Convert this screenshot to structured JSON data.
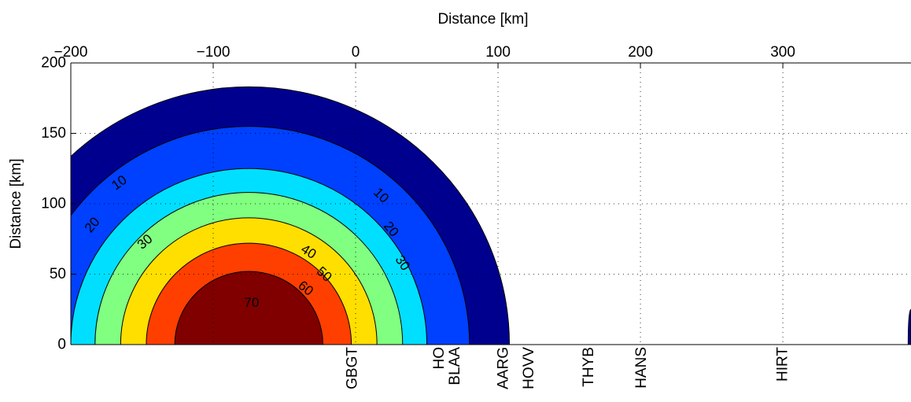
{
  "chart_data": {
    "type": "contour",
    "title": "",
    "xlabel": "Distance [km]",
    "ylabel": "Distance [km]",
    "xlim": [
      -200,
      390
    ],
    "ylim": [
      0,
      200
    ],
    "x_ticks": [
      -200,
      -100,
      0,
      100,
      200,
      300
    ],
    "x_tick_labels": [
      "−200",
      "−100",
      "0",
      "100",
      "200",
      "300"
    ],
    "y_ticks": [
      0,
      50,
      100,
      150,
      200
    ],
    "y_tick_labels": [
      "0",
      "50",
      "100",
      "150",
      "200"
    ],
    "grid": true,
    "source_center": [
      -75,
      0
    ],
    "levels": [
      {
        "value": 10,
        "radius_km": 183,
        "color": "#00008f"
      },
      {
        "value": 20,
        "radius_km": 155,
        "color": "#0040ff"
      },
      {
        "value": 30,
        "radius_km": 125,
        "color": "#00dfff"
      },
      {
        "value": 40,
        "radius_km": 108,
        "color": "#80ff80"
      },
      {
        "value": 50,
        "radius_km": 90,
        "color": "#ffdf00"
      },
      {
        "value": 60,
        "radius_km": 72,
        "color": "#ff3f00"
      },
      {
        "value": 70,
        "radius_km": 52,
        "color": "#800000"
      }
    ],
    "partial_region": {
      "x_start": 388,
      "x_end": 390,
      "y_top": 25,
      "color": "#00008f"
    },
    "contour_labels": [
      {
        "text": "10",
        "x": -166,
        "y": 115,
        "angle": -35
      },
      {
        "text": "20",
        "x": -185,
        "y": 85,
        "angle": -50
      },
      {
        "text": "30",
        "x": -148,
        "y": 73,
        "angle": -40
      },
      {
        "text": "40",
        "x": -33,
        "y": 66,
        "angle": 32
      },
      {
        "text": "50",
        "x": -22,
        "y": 50,
        "angle": 42
      },
      {
        "text": "60",
        "x": -35,
        "y": 40,
        "angle": 38
      },
      {
        "text": "70",
        "x": -73,
        "y": 30,
        "angle": 0
      },
      {
        "text": "10",
        "x": 18,
        "y": 106,
        "angle": 45
      },
      {
        "text": "20",
        "x": 25,
        "y": 82,
        "angle": 50
      },
      {
        "text": "30",
        "x": 33,
        "y": 58,
        "angle": 55
      }
    ],
    "stations": [
      {
        "name": "GBGT",
        "x": -3
      },
      {
        "name": "HO",
        "x": 58
      },
      {
        "name": "BLAA",
        "x": 69
      },
      {
        "name": "AARG",
        "x": 103
      },
      {
        "name": "HOVV",
        "x": 121
      },
      {
        "name": "THYB",
        "x": 163
      },
      {
        "name": "HANS",
        "x": 200
      },
      {
        "name": "HIRT",
        "x": 299
      }
    ]
  }
}
